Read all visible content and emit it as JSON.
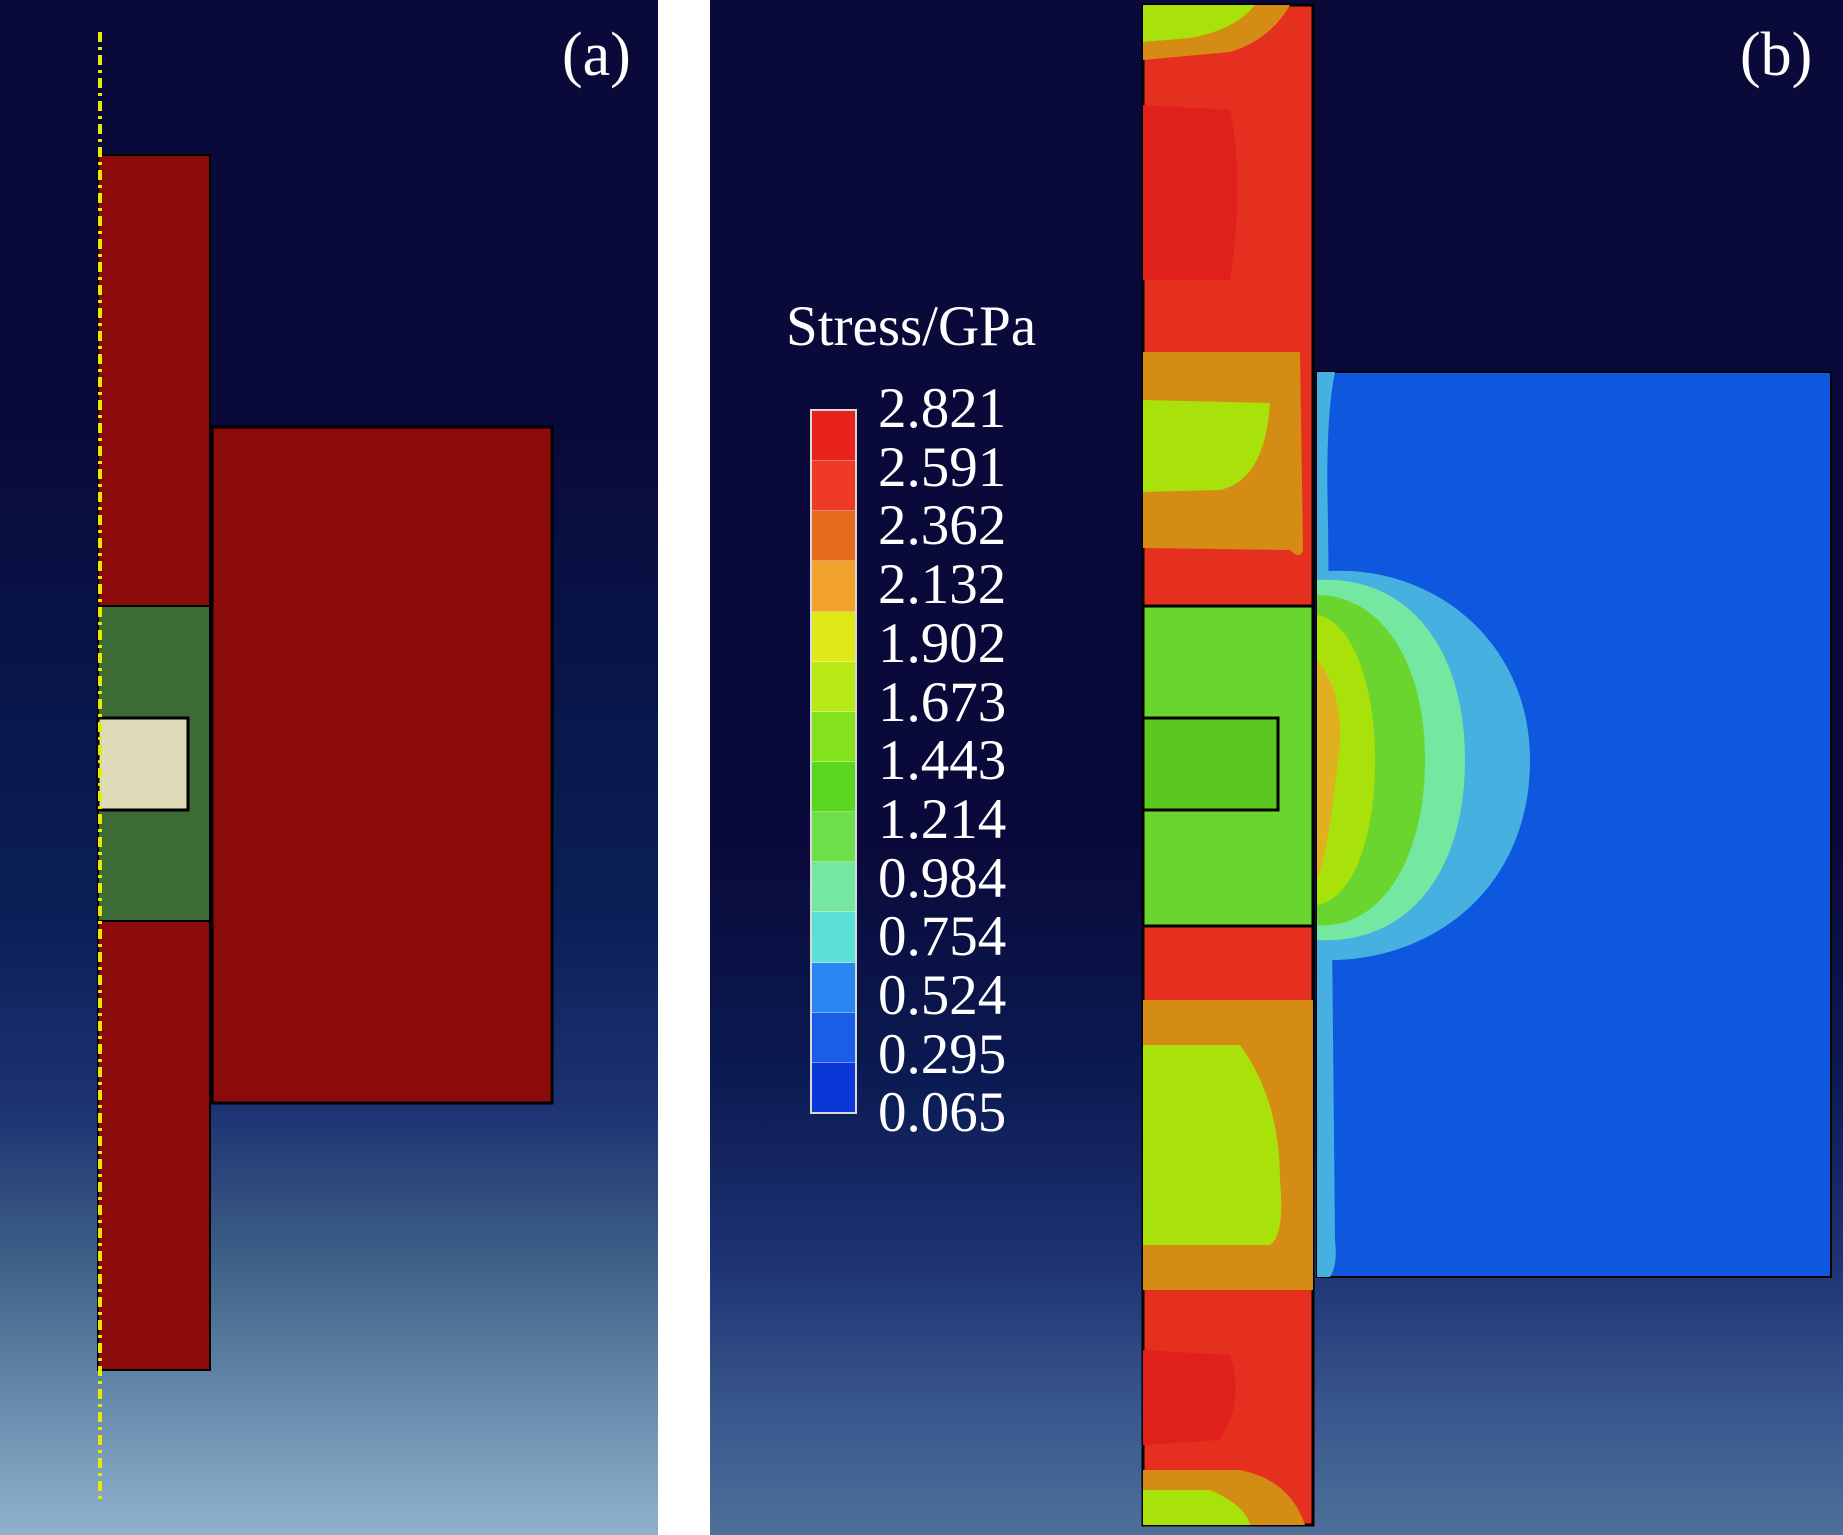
{
  "figure": {
    "panels": [
      {
        "label": "(a)"
      },
      {
        "label": "(b)"
      }
    ],
    "legend": {
      "title": "Stress/GPa",
      "ticks": [
        "2.821",
        "2.591",
        "2.362",
        "2.132",
        "1.902",
        "1.673",
        "1.443",
        "1.214",
        "0.984",
        "0.754",
        "0.524",
        "0.295",
        "0.065"
      ],
      "colors": [
        "#e8231a",
        "#ee3a26",
        "#e46a1e",
        "#f0a22a",
        "#e0e818",
        "#b8ea18",
        "#84e21c",
        "#5ad71e",
        "#6edf4a",
        "#74e8a0",
        "#5ae0d4",
        "#2a86f0",
        "#1b5ce8",
        "#0b36d8"
      ]
    }
  },
  "colors": {
    "background_dark": "#0a0a3a",
    "background_light": "#8fb1cc",
    "material_red": "#8b0a0a",
    "material_green": "#3c6b35",
    "material_cream": "#dedcb8",
    "axis_line": "#e8e800",
    "stress_red": "#e6301f",
    "stress_orange": "#d48c14",
    "stress_yellow": "#a8e20a",
    "stress_green": "#6ad52e",
    "stress_blue": "#0e58e0",
    "stress_cyan": "#46b0e0"
  }
}
